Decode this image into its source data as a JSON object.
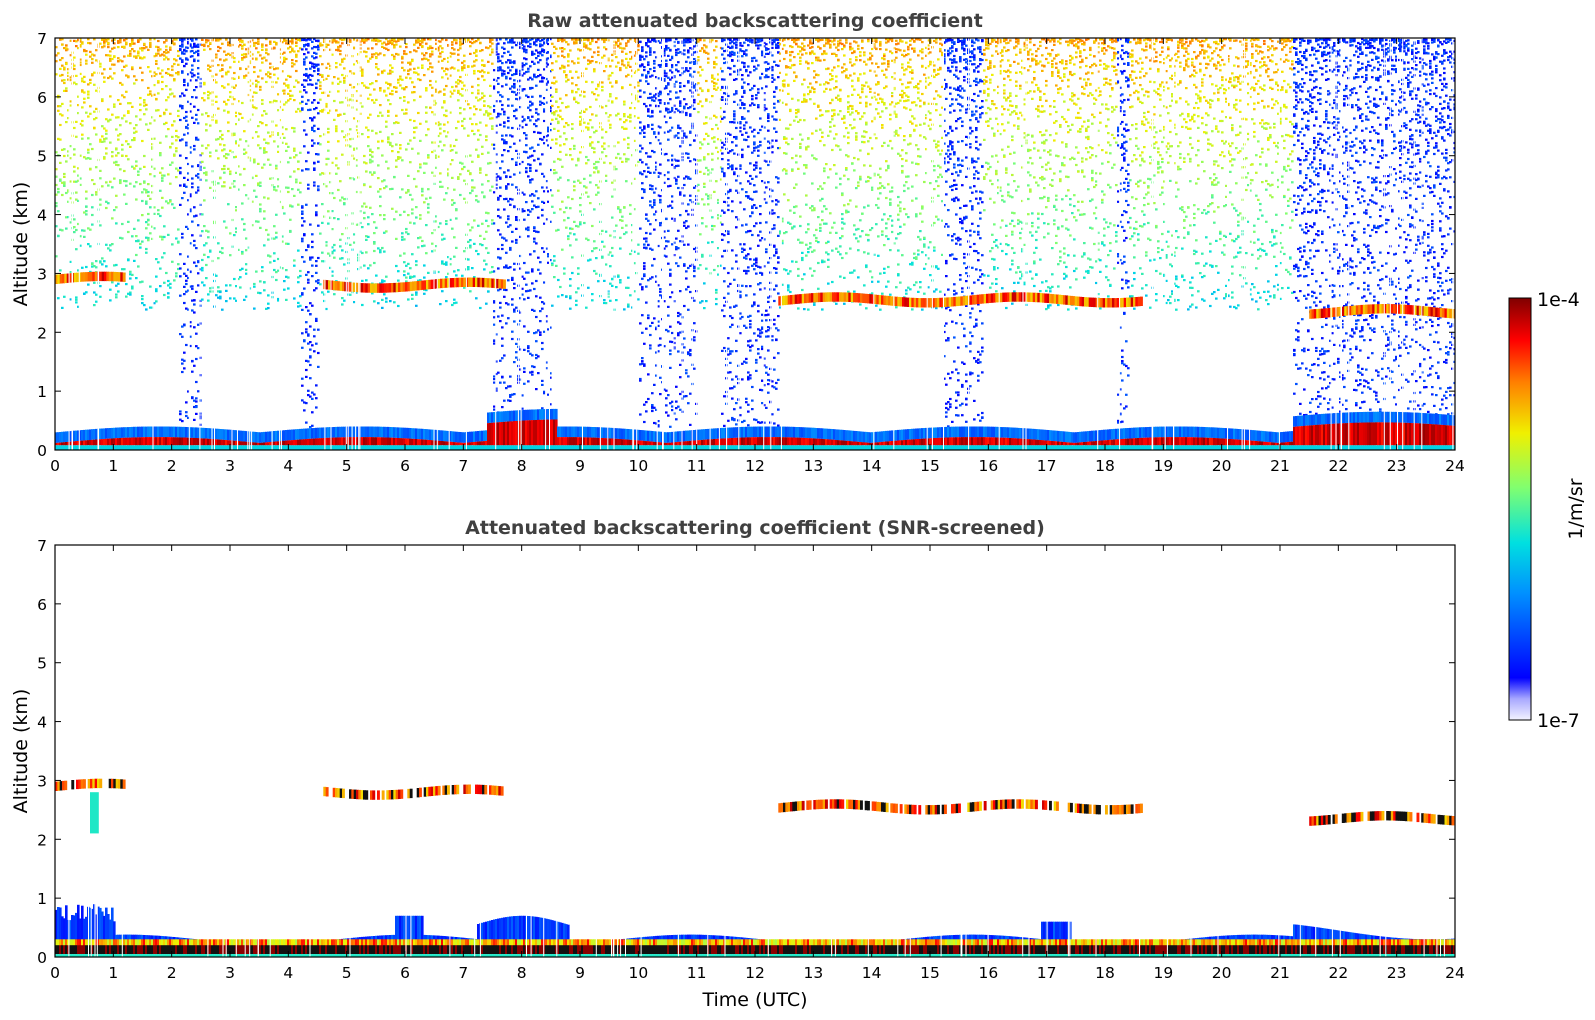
{
  "chart_data": [
    {
      "type": "heatmap",
      "title": "Raw attenuated backscattering coefficient",
      "xlabel": "",
      "ylabel": "Altitude (km)",
      "xlim": [
        0,
        24
      ],
      "ylim": [
        0,
        7
      ],
      "xticks": [
        "0",
        "1",
        "2",
        "3",
        "4",
        "5",
        "6",
        "7",
        "8",
        "9",
        "10",
        "11",
        "12",
        "13",
        "14",
        "15",
        "16",
        "17",
        "18",
        "19",
        "20",
        "21",
        "22",
        "23",
        "24"
      ],
      "yticks": [
        "0",
        "1",
        "2",
        "3",
        "4",
        "5",
        "6",
        "7"
      ],
      "features": {
        "boundary_layer": {
          "x": [
            0,
            24
          ],
          "height_km": [
            0.1,
            0.35
          ]
        },
        "aerosol_layer_km": [
          {
            "x": [
              0.0,
              1.2
            ],
            "alt": 2.9
          },
          {
            "x": [
              4.6,
              7.7
            ],
            "alt": 2.8
          },
          {
            "x": [
              12.4,
              18.6
            ],
            "alt": 2.55
          },
          {
            "x": [
              21.5,
              24.0
            ],
            "alt": 2.35
          }
        ],
        "noise_columns_x": [
          [
            2.1,
            2.5
          ],
          [
            4.2,
            4.5
          ],
          [
            7.5,
            8.5
          ],
          [
            10.0,
            11.0
          ],
          [
            11.4,
            12.4
          ],
          [
            15.2,
            15.9
          ],
          [
            18.2,
            18.4
          ],
          [
            21.2,
            24.0
          ]
        ]
      }
    },
    {
      "type": "heatmap",
      "title": "Attenuated backscattering coefficient (SNR-screened)",
      "xlabel": "Time (UTC)",
      "ylabel": "Altitude (km)",
      "xlim": [
        0,
        24
      ],
      "ylim": [
        0,
        7
      ],
      "xticks": [
        "0",
        "1",
        "2",
        "3",
        "4",
        "5",
        "6",
        "7",
        "8",
        "9",
        "10",
        "11",
        "12",
        "13",
        "14",
        "15",
        "16",
        "17",
        "18",
        "19",
        "20",
        "21",
        "22",
        "23",
        "24"
      ],
      "yticks": [
        "0",
        "1",
        "2",
        "3",
        "4",
        "5",
        "6",
        "7"
      ]
    }
  ],
  "colorbar": {
    "label": "1/m/sr",
    "max_label": "1e-4",
    "min_label": "1e-7",
    "scale": "log",
    "range": [
      1e-07,
      0.0001
    ]
  }
}
